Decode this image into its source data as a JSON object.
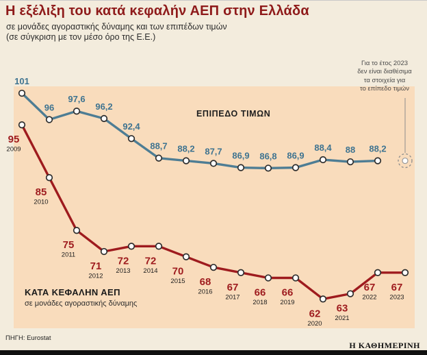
{
  "header": {
    "title": "Η εξέλιξη του κατά κεφαλήν ΑΕΠ στην Ελλάδα",
    "subtitle1": "σε μονάδες αγοραστικής δύναμης και των επιπέδων τιμών",
    "subtitle2": "(σε σύγκριση με τον μέσο όρο της Ε.Ε.)"
  },
  "annotation": {
    "text": "Για το έτος 2023\nδεν είναι διαθέσιμα\nτα στοιχεία για\nτο επίπεδο τιμών"
  },
  "labels": {
    "gdp_sub": "σε μονάδες αγοραστικής δύναμης"
  },
  "footer": {
    "source": "ΠΗΓΗ: Eurostat",
    "brand": "Η ΚΑΘΗΜΕΡΙΝΗ"
  },
  "colors": {
    "page_bg": "#f3ecdd",
    "plot_bg": "#f9dcbc",
    "title_red": "#8e1a1a",
    "line_blue": "#4e7d94",
    "line_red": "#9e1b1e",
    "marker_fill": "#ffffff",
    "marker_stroke": "#2e2e2e",
    "note_gray": "#8d8d8d"
  },
  "chart_data": {
    "type": "line",
    "title": "Η εξέλιξη του κατά κεφαλήν ΑΕΠ στην Ελλάδα",
    "categories": [
      "2009",
      "2010",
      "2011",
      "2012",
      "2013",
      "2014",
      "2015",
      "2016",
      "2017",
      "2018",
      "2019",
      "2020",
      "2021",
      "2022",
      "2023"
    ],
    "ylim": [
      60,
      102
    ],
    "grid": false,
    "legend_position": "inline",
    "note": "Για το έτος 2023 δεν είναι διαθέσιμα τα στοιχεία για το επίπεδο τιμών",
    "series": [
      {
        "name": "ΕΠΙΠΕΔΟ ΤΙΜΩΝ",
        "color": "#4e7d94",
        "values": [
          101,
          96,
          97.6,
          96.2,
          92.4,
          88.7,
          88.2,
          87.7,
          86.9,
          86.8,
          86.9,
          88.4,
          88,
          88.2,
          null
        ],
        "labels": [
          "101",
          "96",
          "97,6",
          "96,2",
          "92,4",
          "88,7",
          "88,2",
          "87,7",
          "86,9",
          "86,8",
          "86,9",
          "88,4",
          "88",
          "88,2",
          ""
        ]
      },
      {
        "name": "ΚΑΤΑ ΚΕΦΑΛΗΝ ΑΕΠ",
        "color": "#9e1b1e",
        "values": [
          95,
          85,
          75,
          71,
          72,
          72,
          70,
          68,
          67,
          66,
          66,
          62,
          63,
          67,
          67
        ],
        "labels": [
          "95",
          "85",
          "75",
          "71",
          "72",
          "72",
          "70",
          "68",
          "67",
          "66",
          "66",
          "62",
          "63",
          "67",
          "67"
        ]
      }
    ]
  }
}
